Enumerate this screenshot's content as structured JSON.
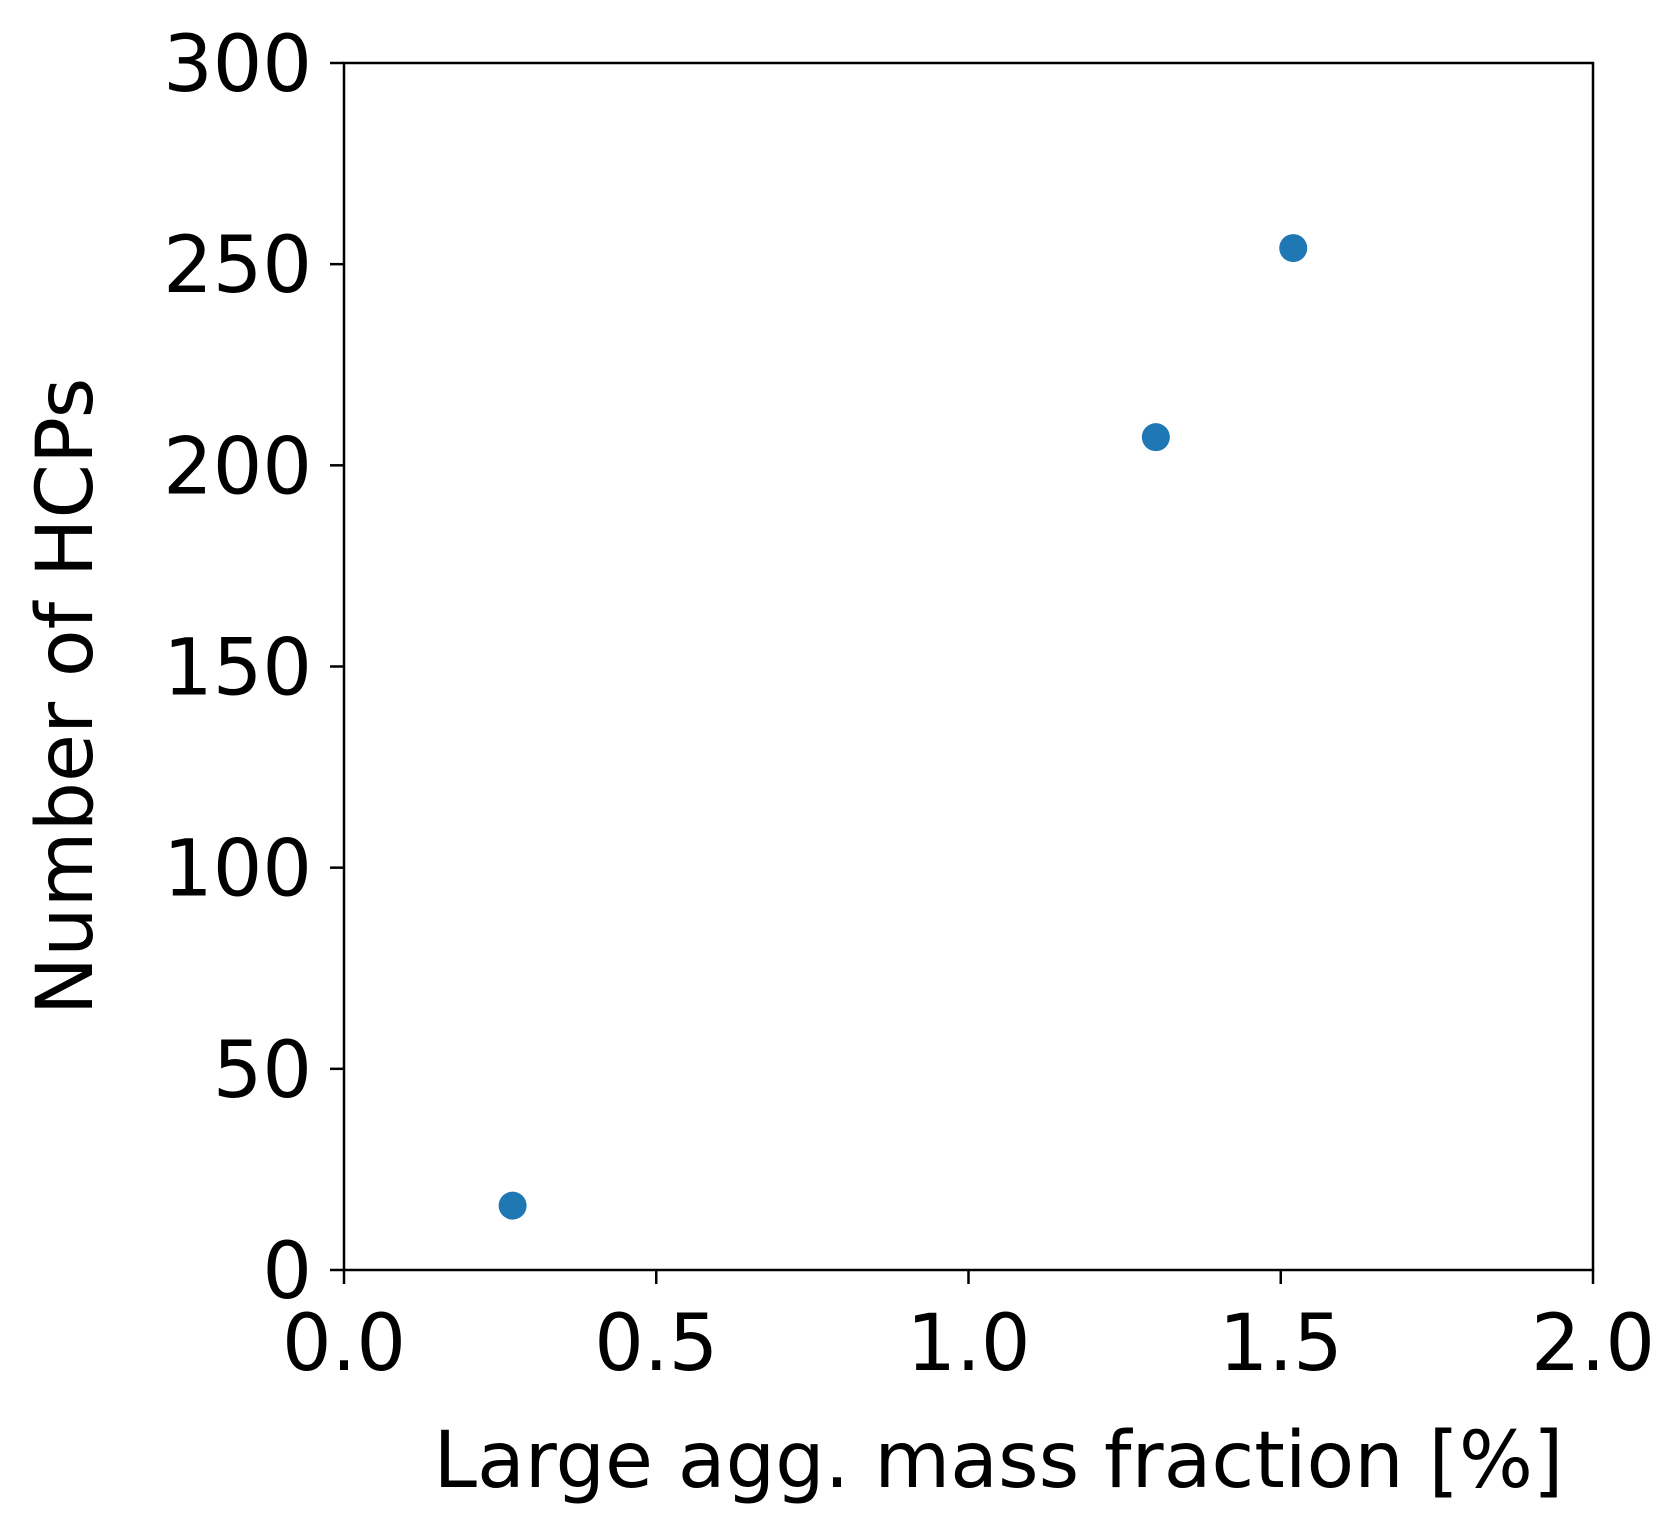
{
  "chart_data": {
    "type": "scatter",
    "title": "",
    "xlabel": "Large agg. mass fraction [%]",
    "ylabel": "Number of HCPs",
    "xlim": [
      0.0,
      2.0
    ],
    "ylim": [
      0,
      300
    ],
    "xticks": [
      {
        "value": 0.0,
        "label": "0.0"
      },
      {
        "value": 0.5,
        "label": "0.5"
      },
      {
        "value": 1.0,
        "label": "1.0"
      },
      {
        "value": 1.5,
        "label": "1.5"
      },
      {
        "value": 2.0,
        "label": "2.0"
      }
    ],
    "yticks": [
      {
        "value": 0,
        "label": "0"
      },
      {
        "value": 50,
        "label": "50"
      },
      {
        "value": 100,
        "label": "100"
      },
      {
        "value": 150,
        "label": "150"
      },
      {
        "value": 200,
        "label": "200"
      },
      {
        "value": 250,
        "label": "250"
      },
      {
        "value": 300,
        "label": "300"
      }
    ],
    "grid": false,
    "series": [
      {
        "color": "#1f77b4",
        "points": [
          {
            "x": 0.27,
            "y": 16
          },
          {
            "x": 1.3,
            "y": 207
          },
          {
            "x": 1.52,
            "y": 254
          }
        ]
      }
    ]
  }
}
